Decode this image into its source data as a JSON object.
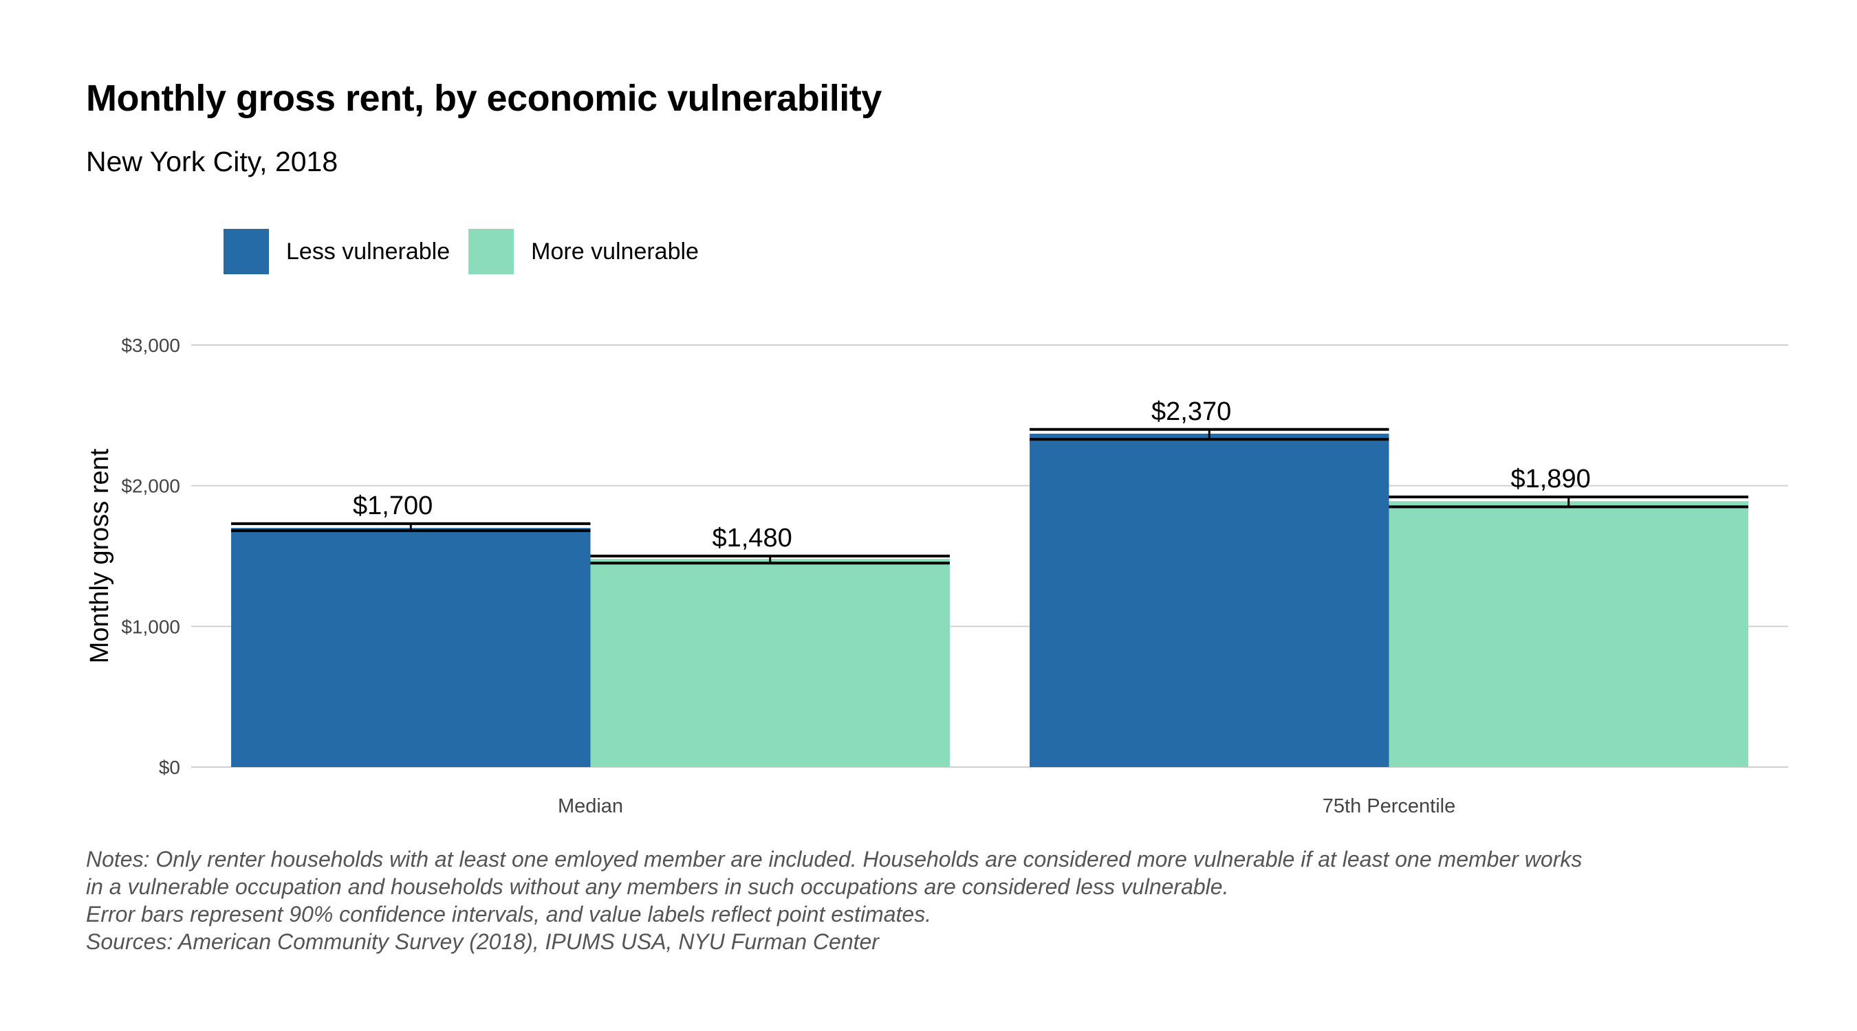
{
  "chart_data": {
    "type": "bar",
    "title": "Monthly gross rent, by economic vulnerability",
    "subtitle": "New York City, 2018",
    "ylabel": "Monthly gross rent",
    "xlabel": "",
    "ylim": [
      0,
      3000
    ],
    "yticks": [
      0,
      1000,
      2000,
      3000
    ],
    "ytick_labels": [
      "$0",
      "$1,000",
      "$2,000",
      "$3,000"
    ],
    "categories": [
      "Median",
      "75th Percentile"
    ],
    "legend_position": "top-left",
    "grid": true,
    "series": [
      {
        "name": "Less vulnerable",
        "color": "#256ba8",
        "values": [
          1700,
          2370
        ],
        "labels": [
          "$1,700",
          "$2,370"
        ],
        "ci_low": [
          1680,
          2330
        ],
        "ci_high": [
          1730,
          2400
        ]
      },
      {
        "name": "More vulnerable",
        "color": "#8adcbb",
        "values": [
          1480,
          1890
        ],
        "labels": [
          "$1,480",
          "$1,890"
        ],
        "ci_low": [
          1450,
          1850
        ],
        "ci_high": [
          1500,
          1920
        ]
      }
    ]
  },
  "notes": [
    "Notes: Only renter households with at least one emloyed member are included. Households are considered  more vulnerable if at least one member works",
    "in a vulnerable occupation and households without any members in such occupations are considered less vulnerable.",
    "Error bars represent 90% confidence intervals, and value labels reflect point estimates.",
    "Sources: American Community Survey (2018), IPUMS USA, NYU Furman Center"
  ]
}
